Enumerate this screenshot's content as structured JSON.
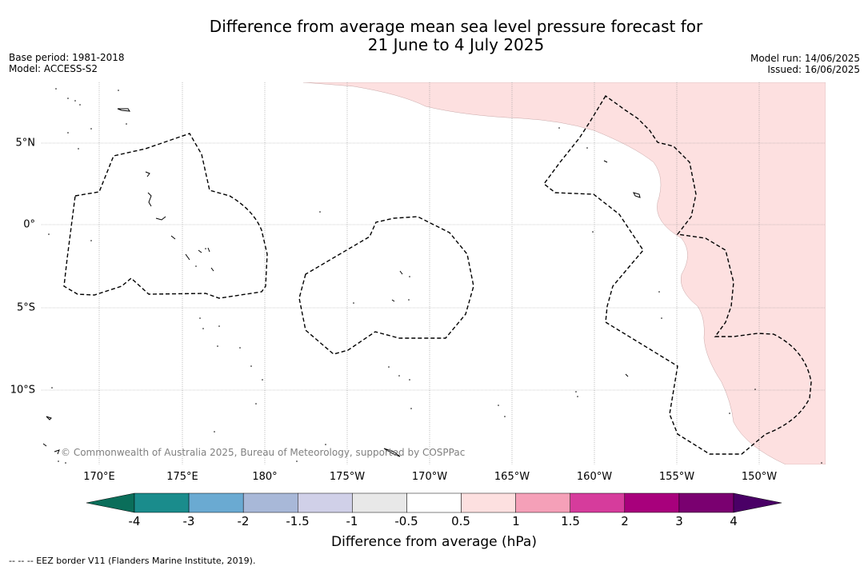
{
  "title_line1": "Difference from average mean sea level pressure forecast for",
  "title_line2": "21 June to 4 July 2025",
  "base_period": "Base period: 1981-2018",
  "model": "Model: ACCESS-S2",
  "model_run": "Model run: 14/06/2025",
  "issued": "Issued: 16/06/2025",
  "longitude_labels": [
    "170°E",
    "175°E",
    "180°",
    "175°W",
    "170°W",
    "165°W",
    "160°W",
    "155°W",
    "150°W"
  ],
  "latitude_labels": [
    "5°N",
    "0°",
    "5°S",
    "10°S"
  ],
  "copyright": "© Commonwealth of Australia 2025, Bureau of Meteorology, supported by COSPPac",
  "colorbar": {
    "title": "Difference from average (hPa)",
    "ticks": [
      "-4",
      "-3",
      "-2",
      "-1.5",
      "-1",
      "-0.5",
      "0.5",
      "1",
      "1.5",
      "2",
      "3",
      "4"
    ],
    "colors": [
      "#1a8c8c",
      "#6aaad2",
      "#a8b8d8",
      "#d0d0e8",
      "#e8e8e8",
      "#ffffff",
      "#fde0e0",
      "#f5a0b8",
      "#d63c9c",
      "#a8007c",
      "#7a0070"
    ],
    "under_color": "#0a6e5a",
    "over_color": "#4a0066"
  },
  "footer": "-- -- -- EEZ border V11 (Flanders Marine Institute, 2019)."
}
